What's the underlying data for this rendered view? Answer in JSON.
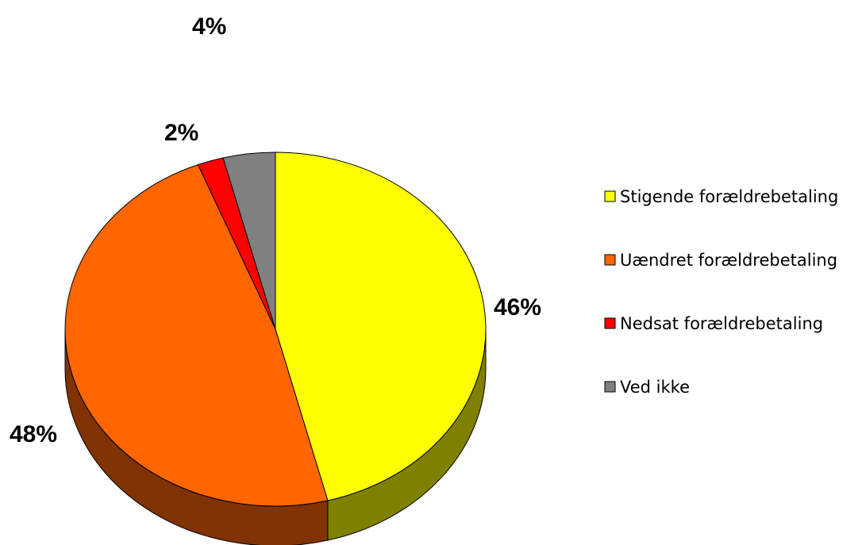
{
  "chart_data": {
    "type": "pie",
    "three_d": true,
    "legend_position": "right",
    "slices": [
      {
        "label": "Stigende forældrebetaling",
        "value": 46,
        "value_label": "46%",
        "color": "#FFFF00",
        "side_color": "#808000"
      },
      {
        "label": "Uændret forældrebetaling",
        "value": 48,
        "value_label": "48%",
        "color": "#FF6600",
        "side_color": "#803300"
      },
      {
        "label": "Nedsat forældrebetaling",
        "value": 2,
        "value_label": "2%",
        "color": "#FF0000",
        "side_color": "#800000"
      },
      {
        "label": "Ved ikke",
        "value": 4,
        "value_label": "4%",
        "color": "#808080",
        "side_color": "#404040"
      }
    ]
  }
}
